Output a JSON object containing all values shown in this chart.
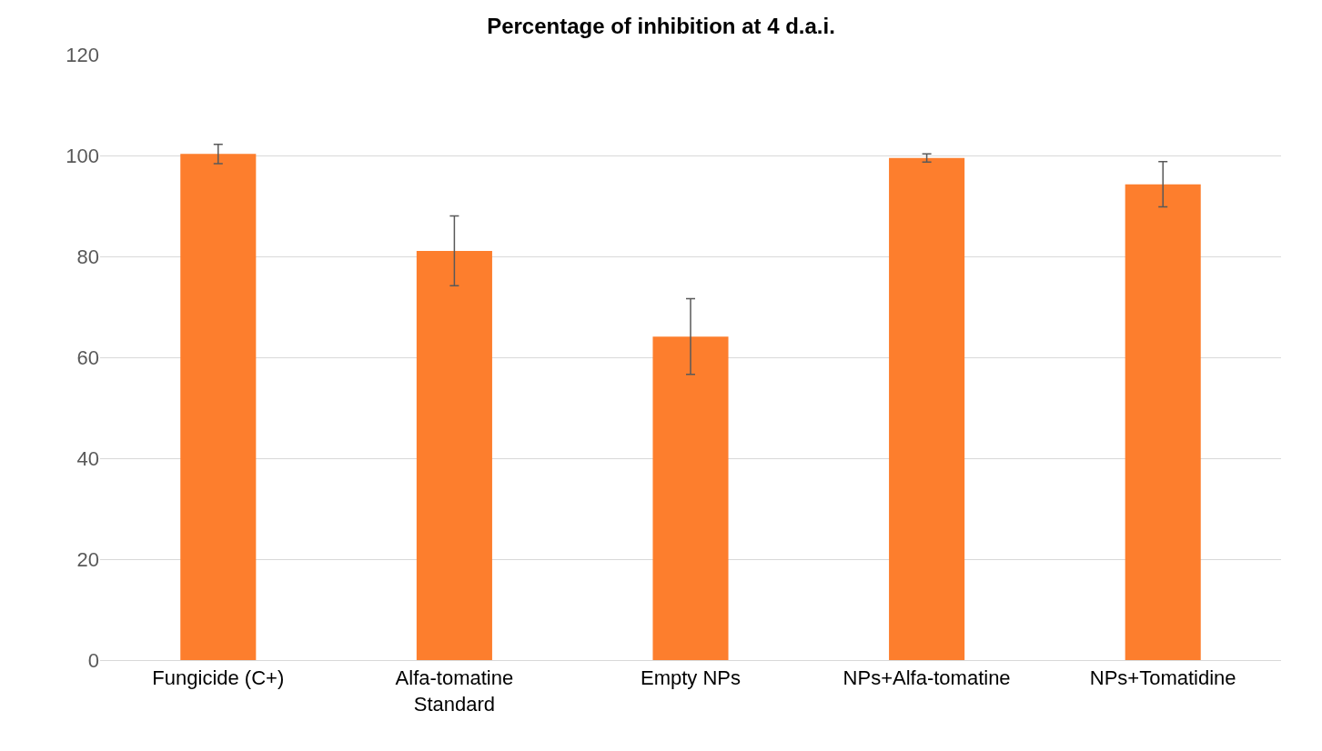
{
  "chart_data": {
    "type": "bar",
    "title": "Percentage of inhibition at 4 d.a.i.",
    "categories": [
      "Fungicide (C+)",
      "Alfa-tomatine Standard",
      "Empty NPs",
      "NPs+Alfa-tomatine",
      "NPs+Tomatidine"
    ],
    "values": [
      100.3,
      81.1,
      64.1,
      99.5,
      94.3
    ],
    "errors": [
      1.9,
      6.9,
      7.5,
      0.8,
      4.5
    ],
    "color": "#fd7e2d",
    "ylim": [
      0,
      120
    ],
    "yticks": [
      0,
      20,
      40,
      60,
      80,
      100,
      120
    ],
    "grid": "y"
  }
}
